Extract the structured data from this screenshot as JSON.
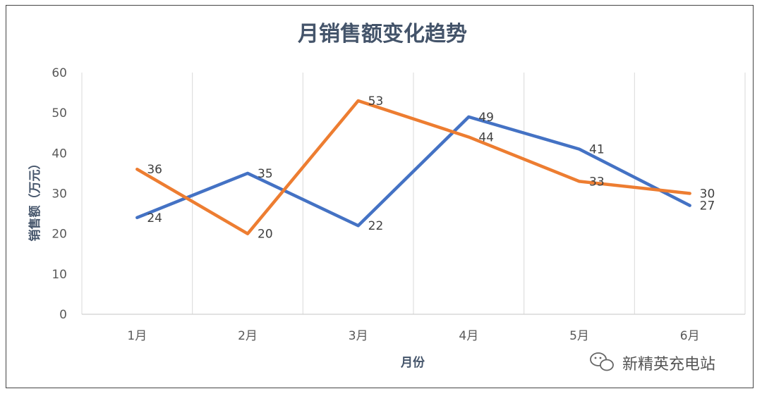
{
  "chart_data": {
    "type": "line",
    "title": "月销售额变化趋势",
    "xlabel": "月份",
    "ylabel": "销售额（万元）",
    "categories": [
      "1月",
      "2月",
      "3月",
      "4月",
      "5月",
      "6月"
    ],
    "ylim": [
      0,
      60
    ],
    "yticks": [
      0,
      10,
      20,
      30,
      40,
      50,
      60
    ],
    "grid": "vertical",
    "legend": "none",
    "series": [
      {
        "color": "#4472c4",
        "values": [
          24,
          35,
          22,
          49,
          41,
          27
        ]
      },
      {
        "color": "#ed7d31",
        "values": [
          36,
          20,
          53,
          44,
          33,
          30
        ]
      }
    ]
  },
  "watermark": {
    "text": "新精英充电站",
    "icon": "wechat-icon"
  }
}
